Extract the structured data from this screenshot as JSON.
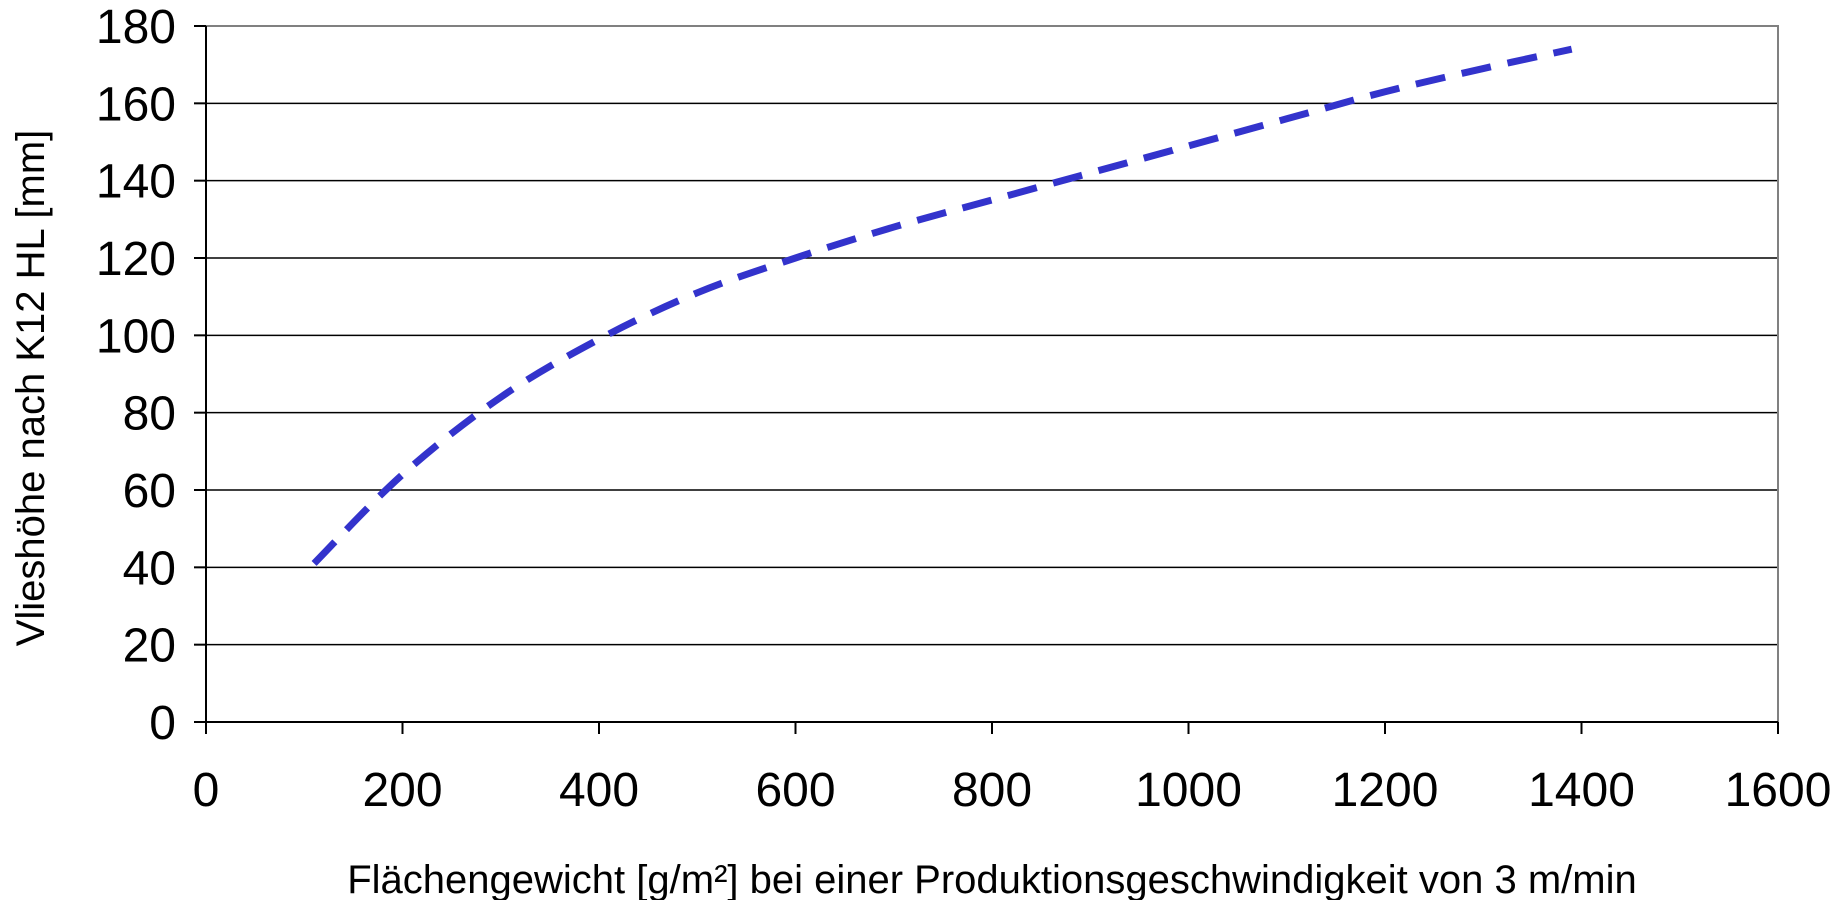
{
  "chart_data": {
    "type": "line",
    "title": "",
    "xlabel": "Flächengewicht [g/m²]  bei einer Produktionsgeschwindigkeit von 3 m/min",
    "ylabel": "Vlieshöhe nach K12 HL [mm]",
    "xlim": [
      0,
      1600
    ],
    "ylim": [
      0,
      180
    ],
    "xticks": [
      0,
      200,
      400,
      600,
      800,
      1000,
      1200,
      1400,
      1600
    ],
    "yticks": [
      0,
      20,
      40,
      60,
      80,
      100,
      120,
      140,
      160,
      180
    ],
    "grid": "horizontal",
    "legend": "none",
    "series": [
      {
        "color": "#3333cc",
        "line_style": "dashed",
        "x": [
          110,
          200,
          300,
          400,
          500,
          600,
          700,
          800,
          900,
          1000,
          1100,
          1200,
          1300,
          1390
        ],
        "y": [
          41,
          64,
          84,
          99,
          111,
          120,
          128,
          135,
          142,
          149,
          156,
          163,
          169,
          174
        ]
      }
    ]
  }
}
